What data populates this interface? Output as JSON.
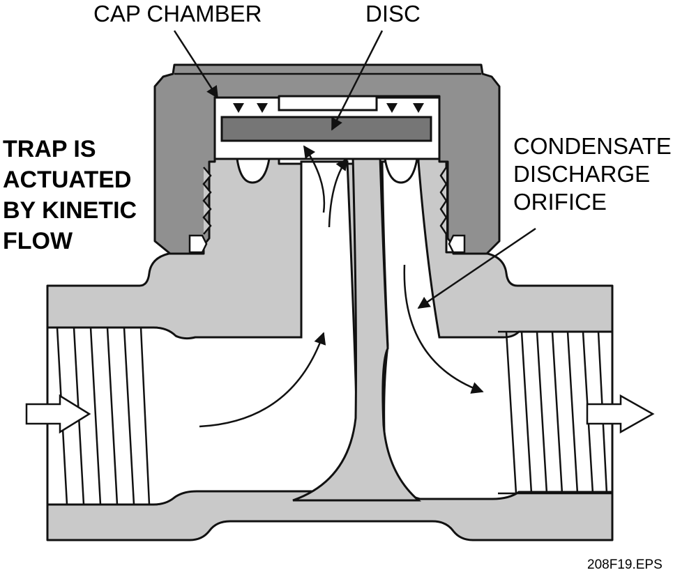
{
  "labels": {
    "cap_chamber": "CAP CHAMBER",
    "disc": "DISC",
    "condensate_lines": [
      "CONDENSATE",
      "DISCHARGE",
      "ORIFICE"
    ],
    "trap_lines": [
      "TRAP IS",
      "ACTUATED",
      "BY KINETIC",
      "FLOW"
    ],
    "file_id": "208F19.EPS"
  },
  "colors": {
    "body": "#c9c9c9",
    "cap": "#909090",
    "disc": "#767676",
    "outline": "#111111",
    "background": "#ffffff"
  }
}
